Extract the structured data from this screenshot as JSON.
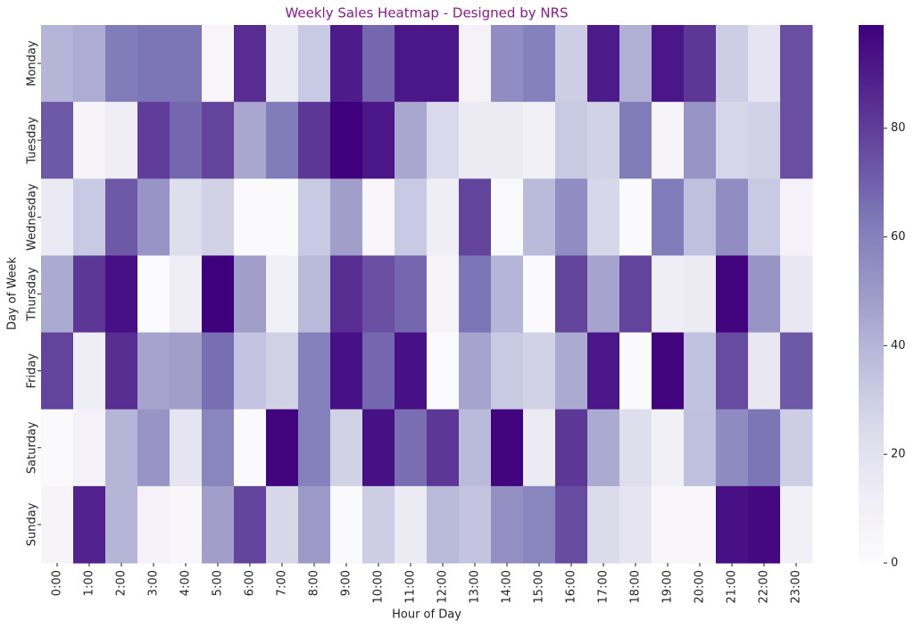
{
  "chart_data": {
    "type": "heatmap",
    "title": "Weekly Sales Heatmap - Designed by NRS",
    "x_label": "Hour of Day",
    "y_label": "Day of Week",
    "x_categories": [
      "0:00",
      "1:00",
      "2:00",
      "3:00",
      "4:00",
      "5:00",
      "6:00",
      "7:00",
      "8:00",
      "9:00",
      "10:00",
      "11:00",
      "12:00",
      "13:00",
      "14:00",
      "15:00",
      "16:00",
      "17:00",
      "18:00",
      "19:00",
      "20:00",
      "21:00",
      "22:00",
      "23:00"
    ],
    "y_categories": [
      "Monday",
      "Tuesday",
      "Wednesday",
      "Thursday",
      "Friday",
      "Saturday",
      "Sunday"
    ],
    "values": [
      [
        40,
        43,
        62,
        64,
        64,
        5,
        85,
        15,
        32,
        90,
        68,
        92,
        92,
        8,
        55,
        60,
        30,
        90,
        42,
        92,
        82,
        30,
        18,
        75
      ],
      [
        72,
        6,
        12,
        80,
        68,
        78,
        45,
        62,
        82,
        99,
        92,
        45,
        25,
        14,
        14,
        10,
        32,
        28,
        62,
        6,
        52,
        26,
        28,
        75
      ],
      [
        15,
        32,
        72,
        52,
        22,
        28,
        2,
        2,
        32,
        48,
        4,
        32,
        12,
        78,
        3,
        38,
        55,
        26,
        2,
        62,
        36,
        55,
        32,
        8
      ],
      [
        44,
        82,
        94,
        1,
        12,
        99,
        48,
        10,
        38,
        85,
        75,
        68,
        6,
        64,
        40,
        2,
        78,
        46,
        78,
        12,
        14,
        98,
        52,
        16
      ],
      [
        78,
        12,
        85,
        46,
        48,
        66,
        34,
        28,
        60,
        94,
        68,
        94,
        1,
        46,
        32,
        28,
        44,
        92,
        2,
        98,
        35,
        76,
        16,
        72
      ],
      [
        2,
        8,
        40,
        52,
        18,
        58,
        2,
        98,
        60,
        28,
        94,
        66,
        82,
        38,
        98,
        14,
        82,
        44,
        22,
        10,
        36,
        56,
        64,
        30
      ],
      [
        6,
        88,
        40,
        8,
        4,
        48,
        78,
        26,
        50,
        2,
        30,
        14,
        38,
        34,
        54,
        58,
        76,
        24,
        18,
        4,
        4,
        94,
        96,
        10
      ]
    ],
    "colormap": "Purples",
    "zlim": [
      0,
      99
    ],
    "zticks": [
      0,
      20,
      40,
      60,
      80
    ]
  }
}
